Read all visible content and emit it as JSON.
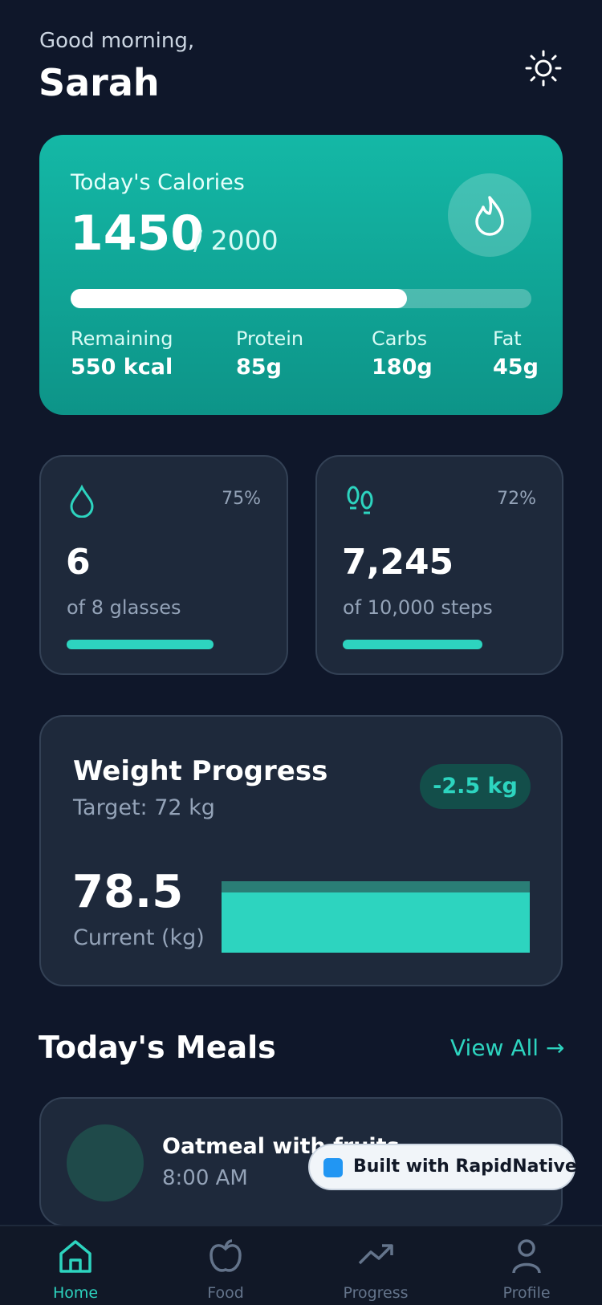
{
  "header": {
    "greeting": "Good morning,",
    "name": "Sarah"
  },
  "calories": {
    "title": "Today's Calories",
    "consumed": "1450",
    "goal": "/ 2000",
    "stats": [
      {
        "label": "Remaining",
        "value": "550 kcal"
      },
      {
        "label": "Protein",
        "value": "85g"
      },
      {
        "label": "Carbs",
        "value": "180g"
      },
      {
        "label": "Fat",
        "value": "45g"
      }
    ]
  },
  "water": {
    "percent": "75%",
    "value": "6",
    "caption": "of 8 glasses"
  },
  "steps": {
    "percent": "72%",
    "value": "7,245",
    "caption": "of 10,000 steps"
  },
  "weight": {
    "title": "Weight Progress",
    "target": "Target: 72 kg",
    "change": "-2.5 kg",
    "current": "78.5",
    "current_label": "Current (kg)"
  },
  "meals": {
    "title": "Today's Meals",
    "view_all": "View All",
    "items": [
      {
        "name": "Oatmeal with fruits",
        "time": "8:00 AM"
      }
    ]
  },
  "nav": [
    "Home",
    "Food",
    "Progress",
    "Profile"
  ],
  "badge": "Built with RapidNative"
}
